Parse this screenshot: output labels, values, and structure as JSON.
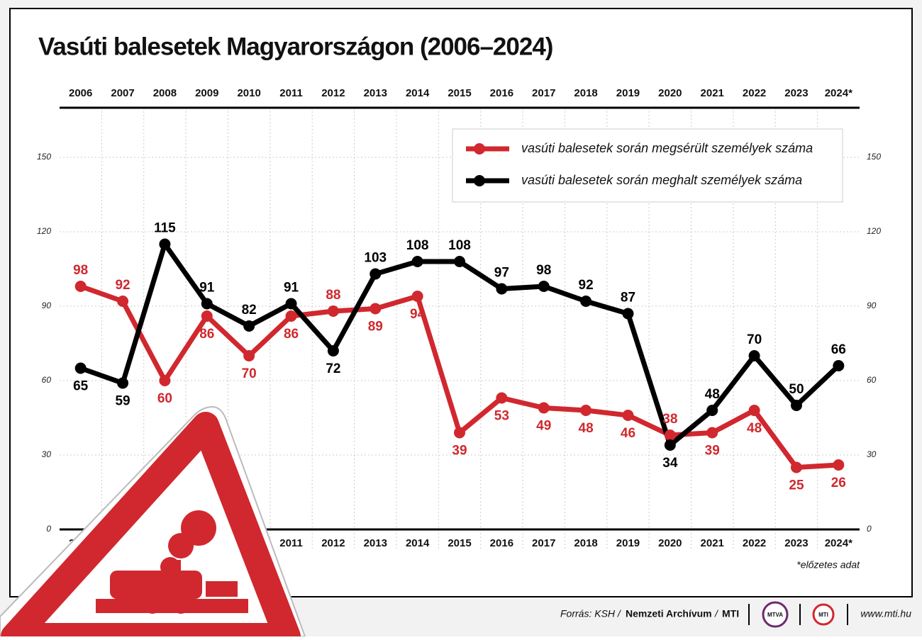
{
  "chart_data": {
    "type": "line",
    "title": "Vasúti balesetek Magyarországon (2006–2024)",
    "categories": [
      "2006",
      "2007",
      "2008",
      "2009",
      "2010",
      "2011",
      "2012",
      "2013",
      "2014",
      "2015",
      "2016",
      "2017",
      "2018",
      "2019",
      "2020",
      "2021",
      "2022",
      "2023",
      "2024*"
    ],
    "series": [
      {
        "name": "vasúti balesetek során megsérült személyek száma",
        "color": "#d0282e",
        "values": [
          98,
          92,
          60,
          86,
          70,
          86,
          88,
          89,
          94,
          39,
          53,
          49,
          48,
          46,
          38,
          39,
          48,
          25,
          26
        ]
      },
      {
        "name": "vasúti balesetek során meghalt személyek száma",
        "color": "#000000",
        "values": [
          65,
          59,
          115,
          91,
          82,
          91,
          72,
          103,
          108,
          108,
          97,
          98,
          92,
          87,
          34,
          48,
          70,
          50,
          66
        ]
      }
    ],
    "ylim": [
      0,
      170
    ],
    "yticks": [
      0,
      30,
      60,
      90,
      120,
      150
    ],
    "grid": true,
    "footnote": "*előzetes adat"
  },
  "footer": {
    "source": "Forrás: KSH /",
    "archive": "Nemzeti Archívum",
    "separator": "/",
    "agency": "MTI",
    "logo1": "MTVA",
    "logo2": "MTI",
    "url": "www.mti.hu"
  }
}
